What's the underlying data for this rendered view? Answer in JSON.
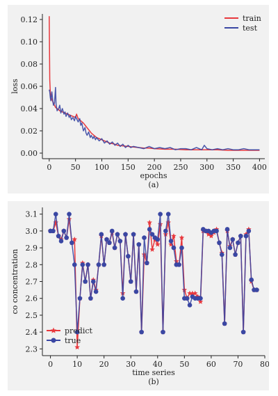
{
  "chart_data": [
    {
      "type": "line",
      "caption": "(a)",
      "xlabel": "epochs",
      "ylabel": "loss",
      "xlim": [
        -13,
        410
      ],
      "ylim": [
        -0.005,
        0.125
      ],
      "xticks": [
        0,
        50,
        100,
        150,
        200,
        250,
        300,
        350,
        400
      ],
      "yticks": [
        0.0,
        0.02,
        0.04,
        0.06,
        0.08,
        0.1,
        0.12
      ],
      "ytick_labels": [
        "0.00",
        "0.02",
        "0.04",
        "0.06",
        "0.08",
        "0.10",
        "0.12"
      ],
      "legend_position": "top-right",
      "series": [
        {
          "name": "train",
          "color": "#e8383d",
          "x": [
            0,
            1,
            2,
            3,
            5,
            8,
            10,
            12,
            15,
            18,
            20,
            25,
            30,
            35,
            40,
            45,
            50,
            52,
            55,
            60,
            65,
            70,
            75,
            80,
            85,
            90,
            95,
            100,
            105,
            110,
            115,
            120,
            125,
            130,
            140,
            150,
            160,
            170,
            180,
            190,
            200,
            220,
            240,
            260,
            280,
            300,
            320,
            340,
            360,
            380,
            400
          ],
          "values": [
            0.123,
            0.066,
            0.055,
            0.051,
            0.048,
            0.045,
            0.043,
            0.041,
            0.04,
            0.039,
            0.038,
            0.037,
            0.036,
            0.035,
            0.034,
            0.033,
            0.032,
            0.035,
            0.031,
            0.029,
            0.027,
            0.024,
            0.021,
            0.018,
            0.016,
            0.014,
            0.013,
            0.012,
            0.011,
            0.01,
            0.009,
            0.0085,
            0.008,
            0.007,
            0.0065,
            0.006,
            0.0055,
            0.005,
            0.0045,
            0.0045,
            0.004,
            0.0035,
            0.0035,
            0.003,
            0.003,
            0.003,
            0.003,
            0.0025,
            0.0025,
            0.0025,
            0.0025
          ]
        },
        {
          "name": "test",
          "color": "#3a47a3",
          "x": [
            0,
            1,
            2,
            3,
            5,
            7,
            8,
            10,
            12,
            13,
            15,
            18,
            20,
            22,
            25,
            28,
            30,
            32,
            35,
            38,
            40,
            42,
            45,
            48,
            50,
            53,
            55,
            58,
            60,
            62,
            65,
            68,
            70,
            72,
            75,
            78,
            80,
            83,
            85,
            88,
            90,
            95,
            100,
            105,
            110,
            115,
            120,
            125,
            130,
            135,
            140,
            145,
            150,
            155,
            160,
            170,
            180,
            190,
            200,
            210,
            220,
            230,
            240,
            250,
            260,
            270,
            280,
            290,
            295,
            300,
            310,
            320,
            330,
            340,
            350,
            360,
            370,
            380,
            390,
            400
          ],
          "values": [
            0.057,
            0.055,
            0.05,
            0.047,
            0.055,
            0.046,
            0.043,
            0.045,
            0.059,
            0.044,
            0.038,
            0.04,
            0.043,
            0.036,
            0.04,
            0.035,
            0.037,
            0.033,
            0.036,
            0.032,
            0.034,
            0.03,
            0.032,
            0.029,
            0.033,
            0.03,
            0.028,
            0.031,
            0.025,
            0.027,
            0.02,
            0.023,
            0.018,
            0.016,
            0.019,
            0.014,
            0.016,
            0.013,
            0.015,
            0.012,
            0.014,
            0.011,
            0.013,
            0.009,
            0.011,
            0.008,
            0.01,
            0.007,
            0.009,
            0.006,
            0.008,
            0.005,
            0.007,
            0.005,
            0.006,
            0.005,
            0.004,
            0.006,
            0.004,
            0.005,
            0.004,
            0.005,
            0.003,
            0.004,
            0.004,
            0.003,
            0.005,
            0.003,
            0.007,
            0.004,
            0.003,
            0.004,
            0.003,
            0.004,
            0.003,
            0.003,
            0.004,
            0.003,
            0.003,
            0.003
          ]
        }
      ]
    },
    {
      "type": "line",
      "caption": "(b)",
      "xlabel": "time series",
      "ylabel": "co concentration",
      "xlim": [
        -3,
        80
      ],
      "ylim": [
        2.26,
        3.14
      ],
      "xticks": [
        0,
        10,
        20,
        30,
        40,
        50,
        60,
        70,
        80
      ],
      "yticks": [
        2.3,
        2.4,
        2.5,
        2.6,
        2.7,
        2.8,
        2.9,
        3.0,
        3.1
      ],
      "ytick_labels": [
        "2.3",
        "2.4",
        "2.5",
        "2.6",
        "2.7",
        "2.8",
        "2.9",
        "3.0",
        "3.1"
      ],
      "legend_position": "bottom-left",
      "series": [
        {
          "name": "predict",
          "color": "#e8383d",
          "marker": "star",
          "x": [
            0,
            1,
            2,
            3,
            4,
            5,
            6,
            7,
            8,
            9,
            10,
            11,
            12,
            13,
            14,
            15,
            16,
            17,
            18,
            19,
            20,
            21,
            22,
            23,
            24,
            25,
            26,
            27,
            28,
            29,
            30,
            31,
            32,
            33,
            34,
            35,
            36,
            37,
            38,
            39,
            40,
            41,
            42,
            43,
            44,
            45,
            46,
            47,
            48,
            49,
            50,
            51,
            52,
            53,
            54,
            55,
            56,
            57,
            58,
            59,
            60,
            61,
            62,
            63,
            64,
            65,
            66,
            67,
            68,
            69,
            70,
            71,
            72,
            73,
            74,
            75,
            76,
            77
          ],
          "values": [
            3.0,
            3.0,
            3.05,
            2.97,
            2.95,
            3.0,
            2.96,
            3.07,
            2.93,
            2.95,
            2.31,
            2.6,
            2.81,
            2.7,
            2.8,
            2.6,
            2.71,
            2.65,
            2.8,
            2.97,
            2.8,
            2.95,
            2.93,
            2.99,
            2.9,
            2.98,
            2.94,
            2.63,
            2.98,
            2.85,
            2.7,
            2.98,
            2.64,
            2.92,
            2.4,
            2.86,
            2.81,
            3.05,
            2.89,
            2.95,
            2.92,
            3.04,
            2.4,
            2.98,
            3.05,
            2.92,
            2.97,
            2.82,
            2.8,
            2.96,
            2.65,
            2.6,
            2.63,
            2.63,
            2.63,
            2.61,
            2.58,
            3.0,
            3.0,
            2.98,
            2.97,
            2.99,
            3.01,
            2.93,
            2.87,
            2.45,
            3.0,
            2.91,
            2.95,
            2.86,
            2.93,
            2.97,
            2.4,
            2.98,
            3.01,
            2.7,
            2.65,
            2.65
          ]
        },
        {
          "name": "true",
          "color": "#3a47a3",
          "marker": "circle",
          "x": [
            0,
            1,
            2,
            3,
            4,
            5,
            6,
            7,
            8,
            9,
            10,
            11,
            12,
            13,
            14,
            15,
            16,
            17,
            18,
            19,
            20,
            21,
            22,
            23,
            24,
            25,
            26,
            27,
            28,
            29,
            30,
            31,
            32,
            33,
            34,
            35,
            36,
            37,
            38,
            39,
            40,
            41,
            42,
            43,
            44,
            45,
            46,
            47,
            48,
            49,
            50,
            51,
            52,
            53,
            54,
            55,
            56,
            57,
            58,
            59,
            60,
            61,
            62,
            63,
            64,
            65,
            66,
            67,
            68,
            69,
            70,
            71,
            72,
            73,
            74,
            75,
            76,
            77
          ],
          "values": [
            3.0,
            3.0,
            3.1,
            2.97,
            2.94,
            3.0,
            2.96,
            3.1,
            2.93,
            2.8,
            2.4,
            2.6,
            2.8,
            2.7,
            2.8,
            2.6,
            2.7,
            2.64,
            2.8,
            2.98,
            2.8,
            2.95,
            2.93,
            3.0,
            2.9,
            2.98,
            2.94,
            2.6,
            2.98,
            2.85,
            2.7,
            2.98,
            2.64,
            2.92,
            2.4,
            2.96,
            2.81,
            3.01,
            2.98,
            2.96,
            2.95,
            3.1,
            2.4,
            3.0,
            3.1,
            2.94,
            2.9,
            2.8,
            2.8,
            2.9,
            2.6,
            2.6,
            2.56,
            2.61,
            2.6,
            2.6,
            2.6,
            3.01,
            3.0,
            3.0,
            2.99,
            3.0,
            3.0,
            2.93,
            2.86,
            2.45,
            3.01,
            2.9,
            2.95,
            2.86,
            2.93,
            2.97,
            2.4,
            2.97,
            3.0,
            2.71,
            2.65,
            2.65
          ]
        }
      ]
    }
  ]
}
